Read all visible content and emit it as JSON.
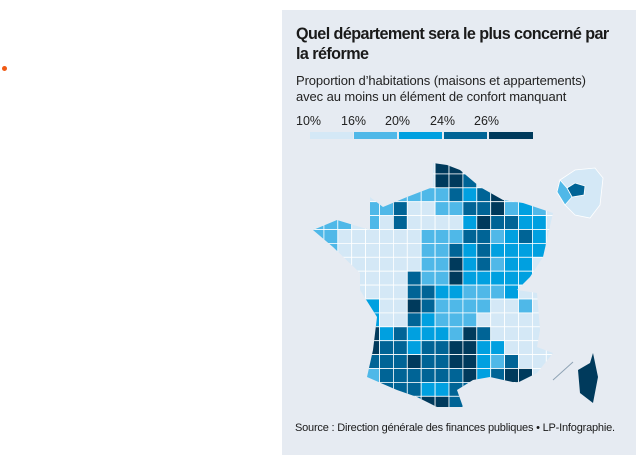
{
  "title": "Quel département sera le plus concerné par la réforme",
  "subtitle_line1": "Proportion d’habitations (maisons et appartements)",
  "subtitle_line2": "avec au moins un élément de confort manquant",
  "legend": {
    "labels": [
      "10%",
      "16%",
      "20%",
      "24%",
      "26%"
    ],
    "colors": [
      "#d4e8f6",
      "#4fb8e8",
      "#00a0e0",
      "#006496",
      "#003a5c"
    ]
  },
  "source": "Source : Direction générale des finances publiques • LP-Infographie.",
  "accent_dot_color": "#f05a14"
}
